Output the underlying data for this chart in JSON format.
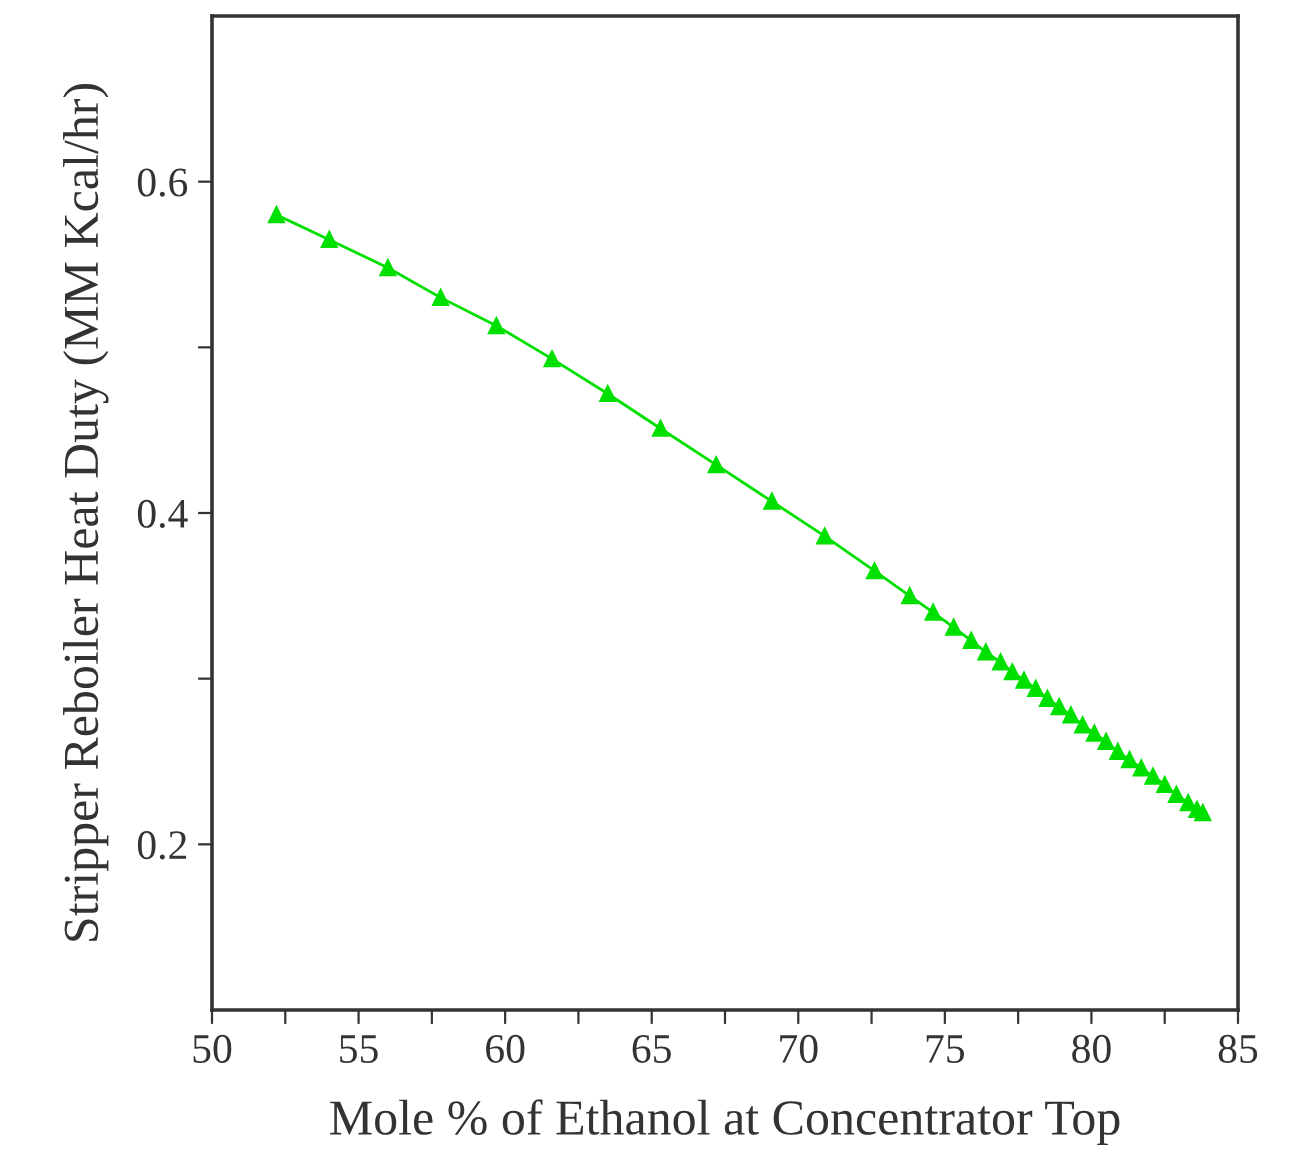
{
  "chart_data": {
    "type": "line",
    "xlabel": "Mole % of Ethanol at Concentrator Top",
    "ylabel": "Stripper Reboiler Heat Duty (MM Kcal/hr)",
    "x": [
      52.2,
      54.0,
      56.0,
      57.8,
      59.7,
      61.6,
      63.5,
      65.3,
      67.2,
      69.1,
      70.9,
      72.6,
      73.8,
      74.6,
      75.3,
      75.9,
      76.4,
      76.9,
      77.3,
      77.7,
      78.1,
      78.5,
      78.9,
      79.3,
      79.7,
      80.1,
      80.5,
      80.9,
      81.3,
      81.7,
      82.1,
      82.5,
      82.9,
      83.3,
      83.6,
      83.8
    ],
    "series": [
      {
        "color": "#00e000",
        "values": [
          0.58,
          0.565,
          0.548,
          0.53,
          0.513,
          0.493,
          0.472,
          0.451,
          0.429,
          0.407,
          0.386,
          0.365,
          0.35,
          0.34,
          0.331,
          0.323,
          0.316,
          0.31,
          0.304,
          0.299,
          0.294,
          0.288,
          0.283,
          0.278,
          0.272,
          0.267,
          0.262,
          0.256,
          0.251,
          0.246,
          0.241,
          0.236,
          0.23,
          0.225,
          0.221,
          0.219
        ]
      }
    ],
    "marker": "triangle",
    "line_style": "solid",
    "xlim": [
      50,
      85
    ],
    "xticks": [
      50,
      {
        "value": 52.5,
        "label": null
      },
      55,
      {
        "value": 57.5,
        "label": null
      },
      60,
      {
        "value": 62.5,
        "label": null
      },
      65,
      {
        "value": 67.5,
        "label": null
      },
      70,
      {
        "value": 72.5,
        "label": null
      },
      75,
      {
        "value": 77.5,
        "label": null
      },
      80,
      {
        "value": 82.5,
        "label": null
      },
      85
    ],
    "ylim": [
      0.1,
      0.7
    ],
    "yticks": [
      {
        "value": 0.2,
        "label": "0.2"
      },
      {
        "value": 0.3,
        "label": null
      },
      {
        "value": 0.4,
        "label": "0.4"
      },
      {
        "value": 0.5,
        "label": null
      },
      {
        "value": 0.6,
        "label": "0.6"
      }
    ]
  }
}
